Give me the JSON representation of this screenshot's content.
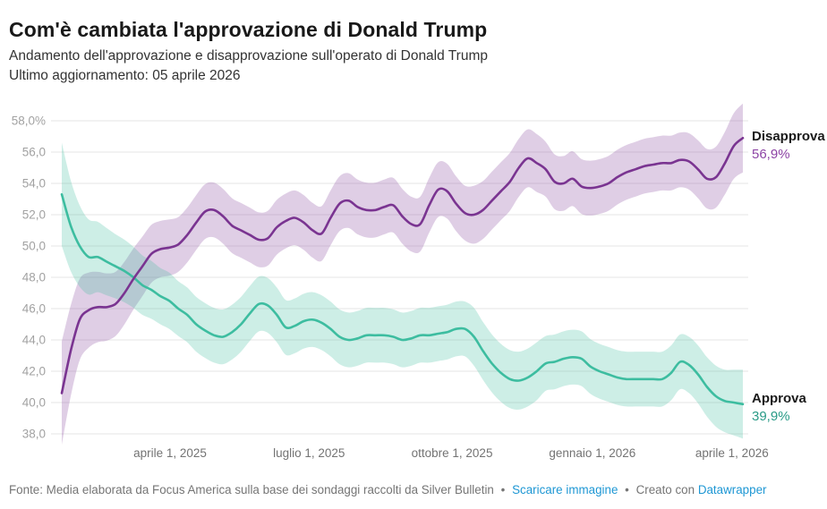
{
  "header": {
    "title": "Com'è cambiata l'approvazione di Donald Trump",
    "subtitle_line1": "Andamento dell'approvazione e disapprovazione sull'operato di Donald Trump",
    "subtitle_line2": "Ultimo aggiornamento: 05 aprile 2026"
  },
  "footer": {
    "source_text": "Fonte: Media elaborata da Focus America sulla base dei sondaggi raccolti da Silver Bulletin",
    "bullet": "•",
    "download_label": "Scaricare immagine",
    "created_with": "Creato con",
    "brand": "Datawrapper",
    "link_color": "#1e97d4"
  },
  "chart_data": {
    "type": "line",
    "title": "Com'è cambiata l'approvazione di Donald Trump",
    "x_range": {
      "start": "2025-01-21",
      "end": "2026-04-05"
    },
    "grid": true,
    "legend_position": "right-end-labels",
    "y_axis": {
      "min": 38.0,
      "max": 58.0,
      "unit": "%",
      "ticks": [
        {
          "label": "58,0%",
          "value": 58
        },
        {
          "label": "56,0",
          "value": 56
        },
        {
          "label": "54,0",
          "value": 54
        },
        {
          "label": "52,0",
          "value": 52
        },
        {
          "label": "50,0",
          "value": 50
        },
        {
          "label": "48,0",
          "value": 48
        },
        {
          "label": "46,0",
          "value": 46
        },
        {
          "label": "44,0",
          "value": 44
        },
        {
          "label": "42,0",
          "value": 42
        },
        {
          "label": "40,0",
          "value": 40
        },
        {
          "label": "38,0",
          "value": 38
        }
      ]
    },
    "x_axis": {
      "ticks": [
        {
          "label": "aprile 1, 2025",
          "t": 0.159
        },
        {
          "label": "luglio 1, 2025",
          "t": 0.363
        },
        {
          "label": "ottobre 1, 2025",
          "t": 0.573
        },
        {
          "label": "gennaio 1, 2026",
          "t": 0.779
        },
        {
          "label": "aprile 1, 2026",
          "t": 0.984
        }
      ]
    },
    "band_half": [
      3.3,
      2.9,
      2.6,
      2.4,
      2.25,
      2.15,
      2.05,
      2.0,
      1.95,
      1.9,
      1.85,
      1.8,
      1.8,
      1.75,
      1.75,
      1.75,
      1.75,
      1.75,
      1.75,
      1.75,
      1.75,
      1.75,
      1.75,
      1.75,
      1.75,
      1.75,
      1.75,
      1.75,
      1.75,
      1.75,
      1.75,
      1.75,
      1.75,
      1.75,
      1.75,
      1.75,
      1.75,
      1.75,
      1.75,
      1.75,
      1.75,
      1.75,
      1.75,
      1.75,
      1.75,
      1.75,
      1.85,
      1.85,
      1.85,
      1.85,
      1.85,
      1.85,
      1.85,
      1.85,
      1.75,
      1.75,
      1.75,
      1.75,
      1.75,
      1.75,
      1.75,
      1.75,
      1.75,
      1.75,
      1.75,
      1.75,
      1.75,
      1.75,
      1.75,
      1.75,
      1.8,
      1.85,
      1.9,
      1.95,
      2.0,
      2.1,
      2.2
    ],
    "series": [
      {
        "name": "Disapprova",
        "end_label": "56,9%",
        "end_value": 56.9,
        "color": "#7a3491",
        "band_color": "rgba(122,52,145,0.24)",
        "value_color": "#8d44a5",
        "values": [
          40.6,
          43.3,
          45.3,
          45.9,
          46.1,
          46.1,
          46.3,
          47.0,
          47.9,
          48.7,
          49.5,
          49.8,
          49.9,
          50.1,
          50.7,
          51.5,
          52.2,
          52.3,
          51.9,
          51.3,
          51.0,
          50.7,
          50.4,
          50.5,
          51.2,
          51.6,
          51.8,
          51.5,
          51.0,
          50.8,
          51.8,
          52.7,
          52.9,
          52.5,
          52.3,
          52.3,
          52.5,
          52.6,
          51.9,
          51.4,
          51.4,
          52.6,
          53.6,
          53.5,
          52.7,
          52.1,
          52.0,
          52.3,
          52.9,
          53.5,
          54.1,
          55.0,
          55.6,
          55.3,
          54.9,
          54.1,
          54.0,
          54.3,
          53.8,
          53.7,
          53.8,
          54.0,
          54.4,
          54.7,
          54.9,
          55.1,
          55.2,
          55.3,
          55.3,
          55.5,
          55.4,
          54.9,
          54.3,
          54.4,
          55.3,
          56.4,
          56.9
        ]
      },
      {
        "name": "Approva",
        "end_label": "39,9%",
        "end_value": 39.9,
        "color": "#3dbda0",
        "band_color": "rgba(61,189,160,0.26)",
        "value_color": "#2a9b87",
        "values": [
          53.3,
          51.3,
          50.0,
          49.3,
          49.3,
          49.0,
          48.7,
          48.4,
          48.0,
          47.5,
          47.2,
          46.8,
          46.5,
          46.0,
          45.6,
          45.0,
          44.6,
          44.3,
          44.2,
          44.5,
          45.0,
          45.7,
          46.3,
          46.2,
          45.6,
          44.8,
          44.9,
          45.2,
          45.3,
          45.1,
          44.7,
          44.2,
          44.0,
          44.1,
          44.3,
          44.3,
          44.3,
          44.2,
          44.0,
          44.1,
          44.3,
          44.3,
          44.4,
          44.5,
          44.7,
          44.7,
          44.2,
          43.3,
          42.5,
          41.9,
          41.5,
          41.4,
          41.6,
          42.0,
          42.5,
          42.6,
          42.8,
          42.9,
          42.8,
          42.3,
          42.0,
          41.8,
          41.6,
          41.5,
          41.5,
          41.5,
          41.5,
          41.5,
          41.9,
          42.6,
          42.4,
          41.8,
          41.0,
          40.4,
          40.1,
          40.0,
          39.9
        ]
      }
    ],
    "style": {
      "gridline_color": "#e6e6e6",
      "y_tick_color": "#a2a2a2",
      "x_tick_color": "#737373"
    }
  }
}
